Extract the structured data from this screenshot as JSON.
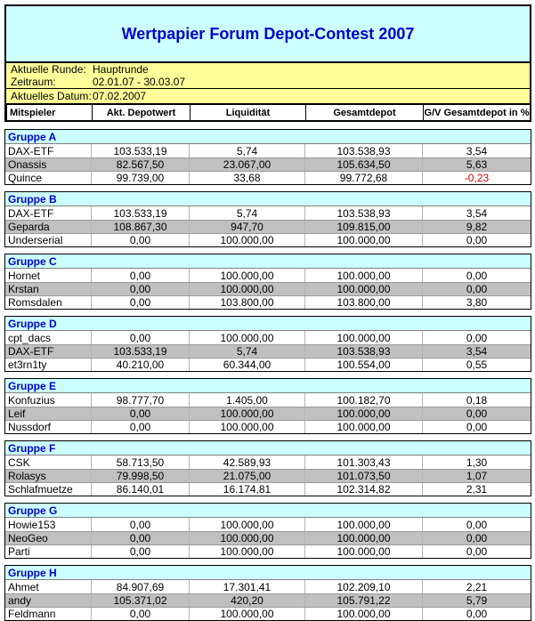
{
  "title": "Wertpapier Forum Depot-Contest 2007",
  "info": {
    "rows": [
      {
        "label": "Aktuelle Runde:",
        "value": "Hauptrunde"
      },
      {
        "label": "Zeitraum:",
        "value": "02.01.07 - 30.03.07"
      },
      {
        "label": "Aktuelles Datum:",
        "value": "07.02.2007"
      }
    ]
  },
  "columns": [
    "Mitspieler",
    "Akt. Depotwert",
    "Liquidität",
    "Gesamtdepot",
    "G/V Gesamtdepot in %"
  ],
  "groups": [
    {
      "name": "Gruppe A",
      "rows": [
        {
          "player": "DAX-ETF",
          "depotwert": "103.533,19",
          "liquiditaet": "5,74",
          "gesamtdepot": "103.538,93",
          "gv": "3,54"
        },
        {
          "player": "Onassis",
          "depotwert": "82.567,50",
          "liquiditaet": "23.067,00",
          "gesamtdepot": "105.634,50",
          "gv": "5,63"
        },
        {
          "player": "Quince",
          "depotwert": "99.739,00",
          "liquiditaet": "33,68",
          "gesamtdepot": "99.772,68",
          "gv": "-0,23"
        }
      ]
    },
    {
      "name": "Gruppe B",
      "rows": [
        {
          "player": "DAX-ETF",
          "depotwert": "103.533,19",
          "liquiditaet": "5,74",
          "gesamtdepot": "103.538,93",
          "gv": "3,54"
        },
        {
          "player": "Geparda",
          "depotwert": "108.867,30",
          "liquiditaet": "947,70",
          "gesamtdepot": "109.815,00",
          "gv": "9,82"
        },
        {
          "player": "Underserial",
          "depotwert": "0,00",
          "liquiditaet": "100.000,00",
          "gesamtdepot": "100.000,00",
          "gv": "0,00"
        }
      ]
    },
    {
      "name": "Gruppe C",
      "rows": [
        {
          "player": "Hornet",
          "depotwert": "0,00",
          "liquiditaet": "100.000,00",
          "gesamtdepot": "100.000,00",
          "gv": "0,00"
        },
        {
          "player": "Krstan",
          "depotwert": "0,00",
          "liquiditaet": "100.000,00",
          "gesamtdepot": "100.000,00",
          "gv": "0,00"
        },
        {
          "player": "Romsdalen",
          "depotwert": "0,00",
          "liquiditaet": "103.800,00",
          "gesamtdepot": "103.800,00",
          "gv": "3,80"
        }
      ]
    },
    {
      "name": "Gruppe D",
      "rows": [
        {
          "player": "cpt_dacs",
          "depotwert": "0,00",
          "liquiditaet": "100.000,00",
          "gesamtdepot": "100.000,00",
          "gv": "0,00"
        },
        {
          "player": "DAX-ETF",
          "depotwert": "103.533,19",
          "liquiditaet": "5,74",
          "gesamtdepot": "103.538,93",
          "gv": "3,54"
        },
        {
          "player": "et3rn1ty",
          "depotwert": "40.210,00",
          "liquiditaet": "60.344,00",
          "gesamtdepot": "100.554,00",
          "gv": "0,55"
        }
      ]
    },
    {
      "name": "Gruppe E",
      "rows": [
        {
          "player": "Konfuzius",
          "depotwert": "98.777,70",
          "liquiditaet": "1.405,00",
          "gesamtdepot": "100.182,70",
          "gv": "0,18"
        },
        {
          "player": "Leif",
          "depotwert": "0,00",
          "liquiditaet": "100.000,00",
          "gesamtdepot": "100.000,00",
          "gv": "0,00"
        },
        {
          "player": "Nussdorf",
          "depotwert": "0,00",
          "liquiditaet": "100.000,00",
          "gesamtdepot": "100.000,00",
          "gv": "0,00"
        }
      ]
    },
    {
      "name": "Gruppe F",
      "rows": [
        {
          "player": "CSK",
          "depotwert": "58.713,50",
          "liquiditaet": "42.589,93",
          "gesamtdepot": "101.303,43",
          "gv": "1,30"
        },
        {
          "player": "Rolasys",
          "depotwert": "79.998,50",
          "liquiditaet": "21.075,00",
          "gesamtdepot": "101.073,50",
          "gv": "1,07"
        },
        {
          "player": "Schlafmuetze",
          "depotwert": "86.140,01",
          "liquiditaet": "16.174,81",
          "gesamtdepot": "102.314,82",
          "gv": "2,31"
        }
      ]
    },
    {
      "name": "Gruppe G",
      "rows": [
        {
          "player": "Howie153",
          "depotwert": "0,00",
          "liquiditaet": "100.000,00",
          "gesamtdepot": "100.000,00",
          "gv": "0,00"
        },
        {
          "player": "NeoGeo",
          "depotwert": "0,00",
          "liquiditaet": "100.000,00",
          "gesamtdepot": "100.000,00",
          "gv": "0,00"
        },
        {
          "player": "Parti",
          "depotwert": "0,00",
          "liquiditaet": "100.000,00",
          "gesamtdepot": "100.000,00",
          "gv": "0,00"
        }
      ]
    },
    {
      "name": "Gruppe H",
      "rows": [
        {
          "player": "Ahmet",
          "depotwert": "84.907,69",
          "liquiditaet": "17.301,41",
          "gesamtdepot": "102.209,10",
          "gv": "2,21"
        },
        {
          "player": "andy",
          "depotwert": "105.371,02",
          "liquiditaet": "420,20",
          "gesamtdepot": "105.791,22",
          "gv": "5,79"
        },
        {
          "player": "Feldmann",
          "depotwert": "0,00",
          "liquiditaet": "100.000,00",
          "gesamtdepot": "100.000,00",
          "gv": "0,00"
        }
      ]
    }
  ],
  "colors": {
    "banner_bg": "#ccffff",
    "group_header_bg": "#ccffff",
    "info_bg": "#ffff99",
    "stripe_row_bg": "#c0c0c0",
    "title_text": "#0000cc",
    "negative_value": "#dd0000",
    "border": "#000000"
  }
}
